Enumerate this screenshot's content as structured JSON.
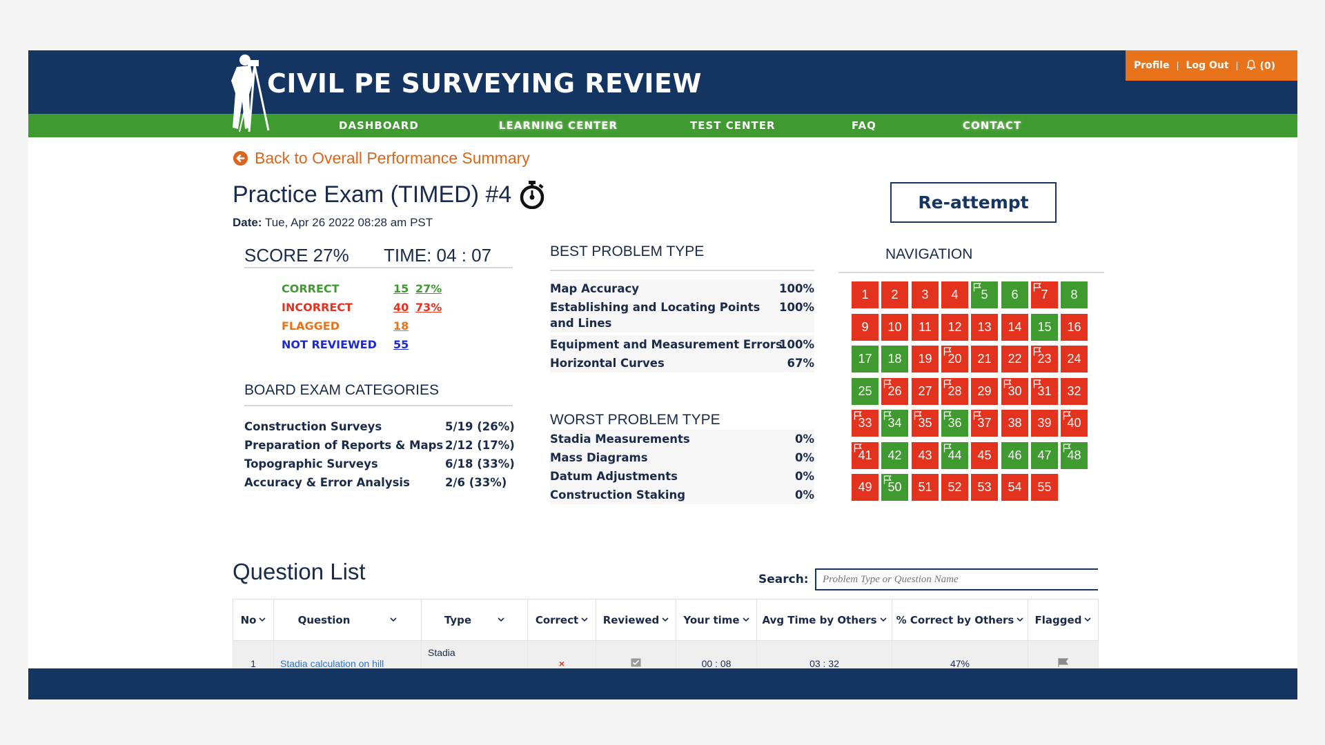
{
  "header": {
    "site_title": "CIVIL PE SURVEYING REVIEW",
    "profile_label": "Profile",
    "logout_label": "Log Out",
    "notifications_label": "(0)",
    "separator": "|"
  },
  "nav": {
    "items": [
      "DASHBOARD",
      "LEARNING CENTER",
      "TEST CENTER",
      "FAQ",
      "CONTACT"
    ]
  },
  "back_link": "Back to Overall Performance Summary",
  "exam": {
    "title": "Practice Exam (TIMED) #4",
    "date_label": "Date:",
    "date_value": "Tue, Apr 26 2022 08:28 am PST",
    "reattempt_label": "Re-attempt"
  },
  "score": {
    "score_text": "SCORE 27%",
    "time_text": "TIME: 04 : 07",
    "stats": [
      {
        "label": "CORRECT",
        "count": "15",
        "pct": "27%",
        "color": "#3f9b2f"
      },
      {
        "label": "INCORRECT",
        "count": "40",
        "pct": "73%",
        "color": "#e3321d"
      },
      {
        "label": "FLAGGED",
        "count": "18",
        "pct": "",
        "color": "#e8731a"
      },
      {
        "label": "NOT REVIEWED",
        "count": "55",
        "pct": "",
        "color": "#1a2ad8"
      }
    ]
  },
  "board_categories": {
    "title": "BOARD EXAM CATEGORIES",
    "rows": [
      {
        "name": "Construction Surveys",
        "value": "5/19 (26%)"
      },
      {
        "name": "Preparation of Reports & Maps",
        "value": "2/12 (17%)"
      },
      {
        "name": "Topographic Surveys",
        "value": "6/18 (33%)"
      },
      {
        "name": "Accuracy & Error Analysis",
        "value": "2/6  (33%)"
      }
    ]
  },
  "best_problem_type": {
    "title": "BEST PROBLEM TYPE",
    "rows": [
      {
        "name": "Map Accuracy",
        "value": "100%"
      },
      {
        "name": "Establishing and Locating Points and Lines",
        "value": "100%"
      },
      {
        "name": "Equipment and Measurement Errors",
        "value": "100%"
      },
      {
        "name": "Horizontal Curves",
        "value": "67%"
      }
    ]
  },
  "worst_problem_type": {
    "title": "WORST PROBLEM TYPE",
    "rows": [
      {
        "name": "Stadia Measurements",
        "value": "0%"
      },
      {
        "name": "Mass Diagrams",
        "value": "0%"
      },
      {
        "name": "Datum Adjustments",
        "value": "0%"
      },
      {
        "name": "Construction Staking",
        "value": "0%"
      }
    ]
  },
  "navigation": {
    "title": "NAVIGATION",
    "correct_color": "#3f9b2f",
    "incorrect_color": "#e3321d",
    "questions": [
      {
        "n": "1",
        "status": "red",
        "flagged": false
      },
      {
        "n": "2",
        "status": "red",
        "flagged": false
      },
      {
        "n": "3",
        "status": "red",
        "flagged": false
      },
      {
        "n": "4",
        "status": "red",
        "flagged": false
      },
      {
        "n": "5",
        "status": "green",
        "flagged": true
      },
      {
        "n": "6",
        "status": "green",
        "flagged": false
      },
      {
        "n": "7",
        "status": "red",
        "flagged": true
      },
      {
        "n": "8",
        "status": "green",
        "flagged": false
      },
      {
        "n": "9",
        "status": "red",
        "flagged": false
      },
      {
        "n": "10",
        "status": "red",
        "flagged": false
      },
      {
        "n": "11",
        "status": "red",
        "flagged": false
      },
      {
        "n": "12",
        "status": "red",
        "flagged": false
      },
      {
        "n": "13",
        "status": "red",
        "flagged": false
      },
      {
        "n": "14",
        "status": "red",
        "flagged": false
      },
      {
        "n": "15",
        "status": "green",
        "flagged": false
      },
      {
        "n": "16",
        "status": "red",
        "flagged": false
      },
      {
        "n": "17",
        "status": "green",
        "flagged": false
      },
      {
        "n": "18",
        "status": "green",
        "flagged": false
      },
      {
        "n": "19",
        "status": "red",
        "flagged": false
      },
      {
        "n": "20",
        "status": "red",
        "flagged": true
      },
      {
        "n": "21",
        "status": "red",
        "flagged": false
      },
      {
        "n": "22",
        "status": "red",
        "flagged": false
      },
      {
        "n": "23",
        "status": "red",
        "flagged": true
      },
      {
        "n": "24",
        "status": "red",
        "flagged": false
      },
      {
        "n": "25",
        "status": "green",
        "flagged": false
      },
      {
        "n": "26",
        "status": "red",
        "flagged": true
      },
      {
        "n": "27",
        "status": "red",
        "flagged": false
      },
      {
        "n": "28",
        "status": "red",
        "flagged": true
      },
      {
        "n": "29",
        "status": "red",
        "flagged": false
      },
      {
        "n": "30",
        "status": "red",
        "flagged": true
      },
      {
        "n": "31",
        "status": "red",
        "flagged": true
      },
      {
        "n": "32",
        "status": "red",
        "flagged": false
      },
      {
        "n": "33",
        "status": "red",
        "flagged": true
      },
      {
        "n": "34",
        "status": "green",
        "flagged": true
      },
      {
        "n": "35",
        "status": "red",
        "flagged": true
      },
      {
        "n": "36",
        "status": "green",
        "flagged": true
      },
      {
        "n": "37",
        "status": "red",
        "flagged": true
      },
      {
        "n": "38",
        "status": "red",
        "flagged": false
      },
      {
        "n": "39",
        "status": "red",
        "flagged": false
      },
      {
        "n": "40",
        "status": "red",
        "flagged": true
      },
      {
        "n": "41",
        "status": "red",
        "flagged": true
      },
      {
        "n": "42",
        "status": "green",
        "flagged": false
      },
      {
        "n": "43",
        "status": "red",
        "flagged": false
      },
      {
        "n": "44",
        "status": "green",
        "flagged": true
      },
      {
        "n": "45",
        "status": "red",
        "flagged": false
      },
      {
        "n": "46",
        "status": "green",
        "flagged": false
      },
      {
        "n": "47",
        "status": "green",
        "flagged": false
      },
      {
        "n": "48",
        "status": "green",
        "flagged": true
      },
      {
        "n": "49",
        "status": "red",
        "flagged": false
      },
      {
        "n": "50",
        "status": "green",
        "flagged": true
      },
      {
        "n": "51",
        "status": "red",
        "flagged": false
      },
      {
        "n": "52",
        "status": "red",
        "flagged": false
      },
      {
        "n": "53",
        "status": "red",
        "flagged": false
      },
      {
        "n": "54",
        "status": "red",
        "flagged": false
      },
      {
        "n": "55",
        "status": "red",
        "flagged": false
      }
    ]
  },
  "question_list": {
    "title": "Question List",
    "search_label": "Search:",
    "search_placeholder": "Problem Type or Question Name",
    "columns": [
      "No",
      "Question",
      "Type",
      "Correct",
      "Reviewed",
      "Your time",
      "Avg Time by Others",
      "% Correct by Others",
      "Flagged"
    ],
    "rows": [
      {
        "no": "1",
        "question": "Stadia calculation on hill",
        "type": "Stadia",
        "correct": "×",
        "reviewed_icon": "checkbox-icon",
        "your_time": "00 : 08",
        "avg_time": "03 : 32",
        "pct_correct": "47%",
        "flagged_icon": "flag-icon"
      }
    ]
  }
}
